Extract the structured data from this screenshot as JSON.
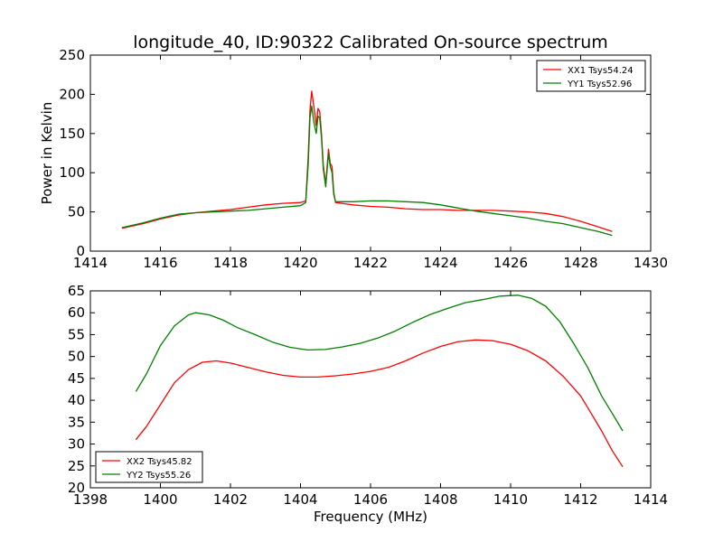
{
  "title": "longitude_40, ID:90322 Calibrated On-source spectrum",
  "chart_data": [
    {
      "type": "line",
      "ylabel": "Power in Kelvin",
      "xlabel": "",
      "xlim": [
        1414,
        1430
      ],
      "ylim": [
        0,
        250
      ],
      "xticks": [
        1414,
        1416,
        1418,
        1420,
        1422,
        1424,
        1426,
        1428,
        1430
      ],
      "yticks": [
        0,
        50,
        100,
        150,
        200,
        250
      ],
      "grid": false,
      "legend_position": "top-right",
      "series": [
        {
          "name": "XX1 Tsys54.24",
          "color": "#ff0000",
          "points": [
            [
              1414.9,
              29
            ],
            [
              1415.5,
              35
            ],
            [
              1416.0,
              41
            ],
            [
              1416.5,
              46
            ],
            [
              1417.0,
              49
            ],
            [
              1417.5,
              51
            ],
            [
              1418.0,
              53
            ],
            [
              1418.5,
              56
            ],
            [
              1419.0,
              59
            ],
            [
              1419.5,
              61
            ],
            [
              1420.0,
              62
            ],
            [
              1420.15,
              64
            ],
            [
              1420.22,
              120
            ],
            [
              1420.27,
              180
            ],
            [
              1420.32,
              204
            ],
            [
              1420.38,
              185
            ],
            [
              1420.45,
              160
            ],
            [
              1420.5,
              182
            ],
            [
              1420.55,
              178
            ],
            [
              1420.6,
              150
            ],
            [
              1420.65,
              110
            ],
            [
              1420.72,
              85
            ],
            [
              1420.8,
              130
            ],
            [
              1420.85,
              112
            ],
            [
              1420.9,
              108
            ],
            [
              1420.95,
              75
            ],
            [
              1421.0,
              62
            ],
            [
              1421.5,
              59
            ],
            [
              1422.0,
              57
            ],
            [
              1422.5,
              56
            ],
            [
              1423.0,
              54
            ],
            [
              1423.5,
              53
            ],
            [
              1424.0,
              53
            ],
            [
              1424.5,
              52
            ],
            [
              1425.0,
              52
            ],
            [
              1425.5,
              52
            ],
            [
              1426.0,
              51
            ],
            [
              1426.5,
              50
            ],
            [
              1427.0,
              48
            ],
            [
              1427.5,
              44
            ],
            [
              1428.0,
              38
            ],
            [
              1428.5,
              31
            ],
            [
              1428.9,
              25
            ]
          ]
        },
        {
          "name": "YY1 Tsys52.96",
          "color": "#008000",
          "points": [
            [
              1414.9,
              30
            ],
            [
              1415.5,
              36
            ],
            [
              1416.0,
              42
            ],
            [
              1416.5,
              47
            ],
            [
              1417.0,
              49
            ],
            [
              1417.5,
              50
            ],
            [
              1418.0,
              51
            ],
            [
              1418.5,
              52
            ],
            [
              1419.0,
              54
            ],
            [
              1419.5,
              56
            ],
            [
              1420.0,
              58
            ],
            [
              1420.15,
              62
            ],
            [
              1420.22,
              110
            ],
            [
              1420.27,
              170
            ],
            [
              1420.32,
              185
            ],
            [
              1420.38,
              165
            ],
            [
              1420.45,
              150
            ],
            [
              1420.5,
              172
            ],
            [
              1420.55,
              170
            ],
            [
              1420.6,
              145
            ],
            [
              1420.65,
              105
            ],
            [
              1420.72,
              82
            ],
            [
              1420.8,
              125
            ],
            [
              1420.85,
              108
            ],
            [
              1420.9,
              100
            ],
            [
              1420.95,
              72
            ],
            [
              1421.0,
              63
            ],
            [
              1421.5,
              63
            ],
            [
              1422.0,
              64
            ],
            [
              1422.5,
              64
            ],
            [
              1423.0,
              63
            ],
            [
              1423.5,
              62
            ],
            [
              1424.0,
              59
            ],
            [
              1424.5,
              55
            ],
            [
              1425.0,
              51
            ],
            [
              1425.5,
              48
            ],
            [
              1426.0,
              45
            ],
            [
              1426.5,
              42
            ],
            [
              1427.0,
              38
            ],
            [
              1427.5,
              35
            ],
            [
              1428.0,
              30
            ],
            [
              1428.5,
              25
            ],
            [
              1428.9,
              20
            ]
          ]
        }
      ]
    },
    {
      "type": "line",
      "ylabel": "",
      "xlabel": "Frequency (MHz)",
      "xlim": [
        1398,
        1414
      ],
      "ylim": [
        20,
        65
      ],
      "xticks": [
        1398,
        1400,
        1402,
        1404,
        1406,
        1408,
        1410,
        1412,
        1414
      ],
      "yticks": [
        20,
        25,
        30,
        35,
        40,
        45,
        50,
        55,
        60,
        65
      ],
      "grid": false,
      "legend_position": "bottom-left",
      "series": [
        {
          "name": "XX2 Tsys45.82",
          "color": "#ff0000",
          "points": [
            [
              1399.3,
              31
            ],
            [
              1399.6,
              34
            ],
            [
              1400.0,
              39
            ],
            [
              1400.4,
              44
            ],
            [
              1400.8,
              47
            ],
            [
              1401.2,
              48.7
            ],
            [
              1401.6,
              49
            ],
            [
              1402.0,
              48.5
            ],
            [
              1402.5,
              47.5
            ],
            [
              1403.0,
              46.5
            ],
            [
              1403.5,
              45.7
            ],
            [
              1404.0,
              45.3
            ],
            [
              1404.5,
              45.3
            ],
            [
              1405.0,
              45.6
            ],
            [
              1405.5,
              46
            ],
            [
              1406.0,
              46.6
            ],
            [
              1406.5,
              47.5
            ],
            [
              1407.0,
              49
            ],
            [
              1407.5,
              50.8
            ],
            [
              1408.0,
              52.3
            ],
            [
              1408.5,
              53.4
            ],
            [
              1409.0,
              53.8
            ],
            [
              1409.5,
              53.6
            ],
            [
              1410.0,
              52.8
            ],
            [
              1410.5,
              51.3
            ],
            [
              1411.0,
              49
            ],
            [
              1411.5,
              45.5
            ],
            [
              1412.0,
              41
            ],
            [
              1412.3,
              37
            ],
            [
              1412.6,
              33
            ],
            [
              1412.9,
              28.5
            ],
            [
              1413.2,
              24.8
            ]
          ]
        },
        {
          "name": "YY2 Tsys55.26",
          "color": "#008000",
          "points": [
            [
              1399.3,
              42
            ],
            [
              1399.6,
              46
            ],
            [
              1400.0,
              52.5
            ],
            [
              1400.4,
              57
            ],
            [
              1400.8,
              59.5
            ],
            [
              1401.0,
              60
            ],
            [
              1401.4,
              59.5
            ],
            [
              1401.8,
              58.3
            ],
            [
              1402.2,
              56.6
            ],
            [
              1402.7,
              55
            ],
            [
              1403.2,
              53.3
            ],
            [
              1403.7,
              52.1
            ],
            [
              1404.2,
              51.5
            ],
            [
              1404.7,
              51.6
            ],
            [
              1405.2,
              52.2
            ],
            [
              1405.7,
              53
            ],
            [
              1406.2,
              54.2
            ],
            [
              1406.7,
              55.8
            ],
            [
              1407.2,
              57.8
            ],
            [
              1407.7,
              59.6
            ],
            [
              1408.2,
              61
            ],
            [
              1408.7,
              62.3
            ],
            [
              1409.2,
              63
            ],
            [
              1409.7,
              63.8
            ],
            [
              1410.2,
              64
            ],
            [
              1410.6,
              63.3
            ],
            [
              1411.0,
              61.5
            ],
            [
              1411.4,
              58
            ],
            [
              1411.8,
              53
            ],
            [
              1412.2,
              47.5
            ],
            [
              1412.6,
              41
            ],
            [
              1412.9,
              37
            ],
            [
              1413.2,
              33
            ]
          ]
        }
      ]
    }
  ]
}
